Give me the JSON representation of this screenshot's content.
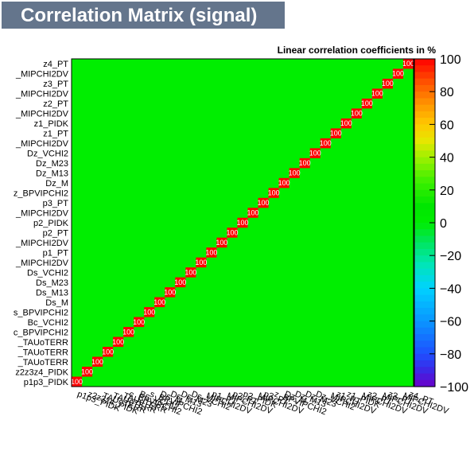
{
  "title": "Correlation Matrix (signal)",
  "chart_data": {
    "type": "heatmap",
    "title": "Correlation Matrix (signal)",
    "z_title": "Linear correlation coefficients in %",
    "zlim": [
      -100,
      100
    ],
    "colorbar_ticks": [
      100,
      80,
      60,
      40,
      20,
      0,
      -20,
      -40,
      -60,
      -80,
      -100
    ],
    "colorbar_tick_labels": [
      "100",
      "80",
      "60",
      "40",
      "20",
      "0",
      "−20",
      "−40",
      "−60",
      "−80",
      "−100"
    ],
    "variables": [
      "p1p3_PIDK",
      "z2z3z4_PIDK",
      "_TAUoTERR",
      "_TAUoTERR",
      "_TAUoTERR",
      "c_BPVIPCHI2",
      "Bc_VCHI2",
      "s_BPVIPCHI2",
      "Ds_M",
      "Ds_M13",
      "Ds_M23",
      "Ds_VCHI2",
      "_MIPCHI2DV",
      "p1_PT",
      "_MIPCHI2DV",
      "p2_PT",
      "p2_PIDK",
      "_MIPCHI2DV",
      "p3_PT",
      "z_BPVIPCHI2",
      "Dz_M",
      "Dz_M13",
      "Dz_M23",
      "Dz_VCHI2",
      "_MIPCHI2DV",
      "z1_PT",
      "z1_PIDK",
      "_MIPCHI2DV",
      "z2_PT",
      "_MIPCHI2DV",
      "z3_PT",
      "_MIPCHI2DV",
      "z4_PT"
    ],
    "colorbar_stops": [
      [
        -100,
        "#6a00c8"
      ],
      [
        -90,
        "#3c28e6"
      ],
      [
        -80,
        "#1e50ff"
      ],
      [
        -60,
        "#0a96ff"
      ],
      [
        -40,
        "#00d2ff"
      ],
      [
        -25,
        "#00e6b4"
      ],
      [
        -10,
        "#00e650"
      ],
      [
        0,
        "#00ee00"
      ],
      [
        10,
        "#00e600"
      ],
      [
        25,
        "#3cf000"
      ],
      [
        40,
        "#a0f000"
      ],
      [
        50,
        "#e6e600"
      ],
      [
        60,
        "#ffc800"
      ],
      [
        72,
        "#ff9600"
      ],
      [
        86,
        "#ff5000"
      ],
      [
        100,
        "#ff0000"
      ]
    ]
  }
}
